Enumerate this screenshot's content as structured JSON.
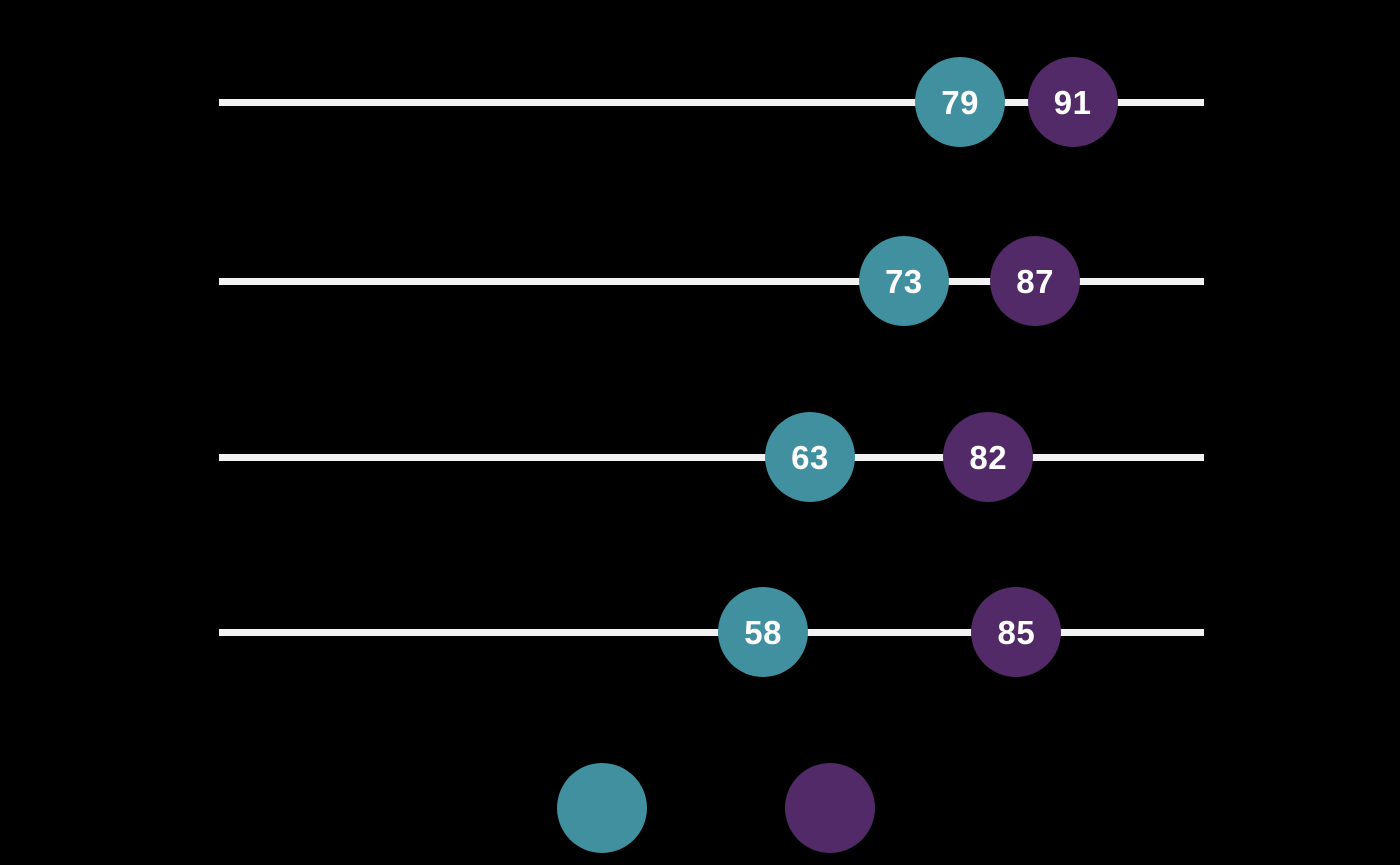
{
  "chart_data": {
    "type": "dumbbell",
    "title": "",
    "xlabel": "",
    "ylabel": "",
    "categories": [
      "",
      "",
      "",
      ""
    ],
    "series": [
      {
        "name": "teal",
        "color": "#41909f",
        "values": [
          79,
          73,
          63,
          58
        ]
      },
      {
        "name": "purple",
        "color": "#512a67",
        "values": [
          91,
          87,
          82,
          85
        ]
      }
    ],
    "xlim": [
      0,
      105
    ],
    "grid": false,
    "connector_color": "#f2f2f2",
    "value_label_color": "#ffffff",
    "legend_position": "bottom",
    "legend": {
      "items": [
        {
          "swatch_color": "#41909f",
          "label": ""
        },
        {
          "swatch_color": "#512a67",
          "label": ""
        }
      ]
    }
  },
  "colors": {
    "background": "#000000",
    "line": "#f2f2f2",
    "teal": "#41909f",
    "purple": "#512a67",
    "value_text": "#ffffff"
  }
}
